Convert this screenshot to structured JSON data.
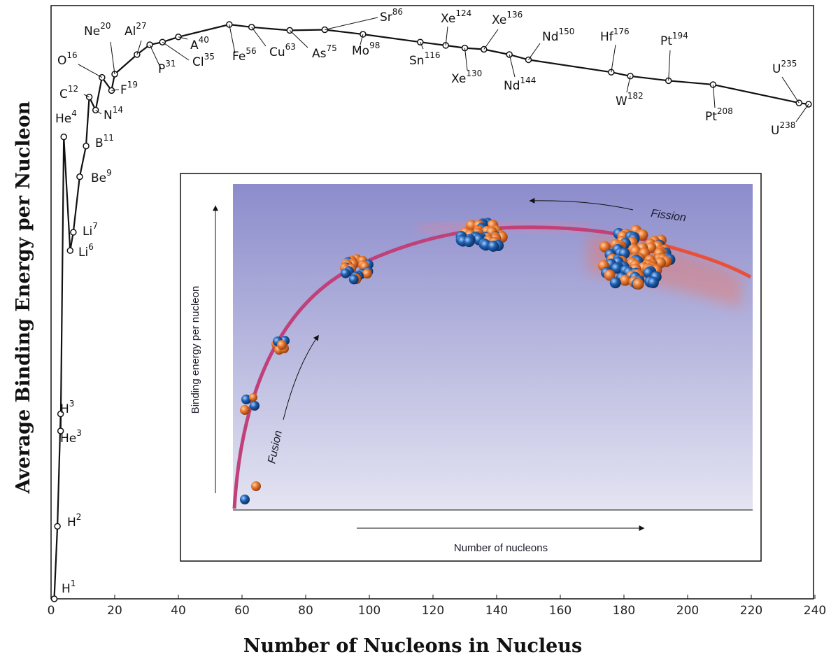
{
  "chart_data": {
    "type": "line",
    "title": "",
    "xlabel": "Number of Nucleons in Nucleus",
    "ylabel": "Average Binding Energy per Nucleon",
    "xlim": [
      0,
      240
    ],
    "x_ticks": [
      "0",
      "20",
      "40",
      "60",
      "80",
      "100",
      "120",
      "140",
      "160",
      "180",
      "200",
      "220",
      "240"
    ],
    "grid": false,
    "series": [
      {
        "points": [
          {
            "x": 1,
            "y": 0.0
          },
          {
            "x": 2,
            "y": 1.11
          },
          {
            "x": 3,
            "y": 2.83
          },
          {
            "x": 3,
            "y": 2.57
          },
          {
            "x": 4,
            "y": 7.07
          },
          {
            "x": 6,
            "y": 5.33
          },
          {
            "x": 7,
            "y": 5.61
          },
          {
            "x": 9,
            "y": 6.46
          },
          {
            "x": 11,
            "y": 6.93
          },
          {
            "x": 12,
            "y": 7.68
          },
          {
            "x": 14,
            "y": 7.48
          },
          {
            "x": 16,
            "y": 7.98
          },
          {
            "x": 19,
            "y": 7.78
          },
          {
            "x": 20,
            "y": 8.03
          },
          {
            "x": 27,
            "y": 8.33
          },
          {
            "x": 31,
            "y": 8.48
          },
          {
            "x": 35,
            "y": 8.52
          },
          {
            "x": 40,
            "y": 8.6
          },
          {
            "x": 56,
            "y": 8.79
          },
          {
            "x": 63,
            "y": 8.75
          },
          {
            "x": 75,
            "y": 8.7
          },
          {
            "x": 86,
            "y": 8.71
          },
          {
            "x": 98,
            "y": 8.64
          },
          {
            "x": 116,
            "y": 8.52
          },
          {
            "x": 124,
            "y": 8.47
          },
          {
            "x": 130,
            "y": 8.43
          },
          {
            "x": 136,
            "y": 8.41
          },
          {
            "x": 144,
            "y": 8.33
          },
          {
            "x": 150,
            "y": 8.25
          },
          {
            "x": 176,
            "y": 8.06
          },
          {
            "x": 182,
            "y": 8.0
          },
          {
            "x": 194,
            "y": 7.93
          },
          {
            "x": 208,
            "y": 7.87
          },
          {
            "x": 235,
            "y": 7.59
          },
          {
            "x": 238,
            "y": 7.57
          }
        ]
      }
    ],
    "annotations": [
      {
        "base": "H",
        "mass": "1"
      },
      {
        "base": "H",
        "mass": "2"
      },
      {
        "base": "He",
        "mass": "3"
      },
      {
        "base": "H",
        "mass": "3"
      },
      {
        "base": "He",
        "mass": "4"
      },
      {
        "base": "Li",
        "mass": "6"
      },
      {
        "base": "Li",
        "mass": "7"
      },
      {
        "base": "Be",
        "mass": "9"
      },
      {
        "base": "B",
        "mass": "11"
      },
      {
        "base": "C",
        "mass": "12"
      },
      {
        "base": "N",
        "mass": "14"
      },
      {
        "base": "O",
        "mass": "16"
      },
      {
        "base": "F",
        "mass": "19"
      },
      {
        "base": "Ne",
        "mass": "20"
      },
      {
        "base": "Al",
        "mass": "27"
      },
      {
        "base": "P",
        "mass": "31"
      },
      {
        "base": "Cl",
        "mass": "35"
      },
      {
        "base": "A",
        "mass": "40"
      },
      {
        "base": "Fe",
        "mass": "56"
      },
      {
        "base": "Cu",
        "mass": "63"
      },
      {
        "base": "As",
        "mass": "75"
      },
      {
        "base": "Sr",
        "mass": "86"
      },
      {
        "base": "Mo",
        "mass": "98"
      },
      {
        "base": "Sn",
        "mass": "116"
      },
      {
        "base": "Xe",
        "mass": "124"
      },
      {
        "base": "Xe",
        "mass": "130"
      },
      {
        "base": "Xe",
        "mass": "136"
      },
      {
        "base": "Nd",
        "mass": "144"
      },
      {
        "base": "Nd",
        "mass": "150"
      },
      {
        "base": "Hf",
        "mass": "176"
      },
      {
        "base": "W",
        "mass": "182"
      },
      {
        "base": "Pt",
        "mass": "194"
      },
      {
        "base": "Pt",
        "mass": "208"
      },
      {
        "base": "U",
        "mass": "235"
      },
      {
        "base": "U",
        "mass": "238"
      }
    ],
    "line_color": "#111111",
    "marker_fill": "#ffffff"
  },
  "inset": {
    "ylabel": "Binding energy per nucleon",
    "xlabel": "Number of nucleons",
    "fusion_label": "Fusion",
    "fission_label": "Fission",
    "curve_color": "#c0407a",
    "fission_curve_color": "#e8503a",
    "bg_top": "#8c8ccc",
    "bg_bottom": "#e4e4f2",
    "proton_color": "#e8772e",
    "neutron_color": "#1f5fb0"
  }
}
